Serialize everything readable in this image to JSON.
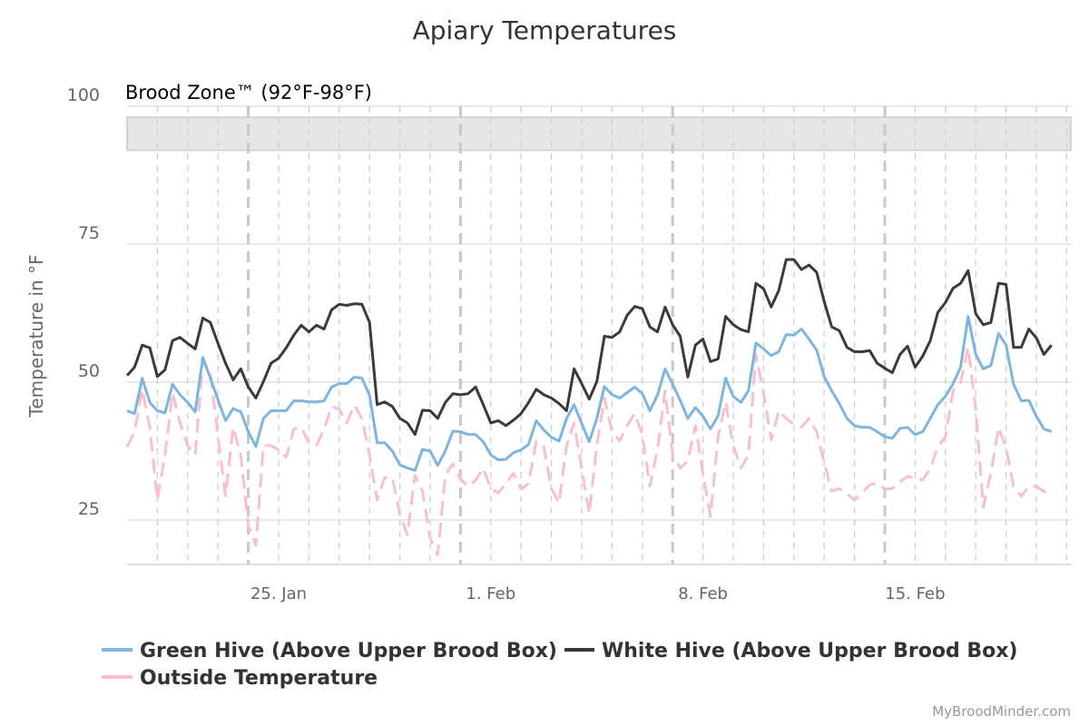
{
  "chart_data": {
    "type": "line",
    "title": "Apiary Temperatures",
    "ylabel": "Temperature in °F",
    "xlabel": "",
    "x_start": "Jan 20 00:00",
    "interval_hours": 6,
    "x_ticks": [
      {
        "label": "25. Jan",
        "day": 5
      },
      {
        "label": "1. Feb",
        "day": 12
      },
      {
        "label": "8. Feb",
        "day": 19
      },
      {
        "label": "15. Feb",
        "day": 26
      }
    ],
    "x_range_days": [
      0,
      31.1
    ],
    "y_ticks": [
      "25",
      "50",
      "75",
      "100"
    ],
    "ylim": [
      17,
      101.6
    ],
    "grid": {
      "horizontal": true,
      "vertical_daily_dashed": true
    },
    "plot_band": {
      "label": "Brood Zone™ (92°F-98°F)",
      "from": 92,
      "to": 98,
      "color": "#e6e6e6"
    },
    "legend_position": "bottom-left",
    "series": [
      {
        "name": "Green Hive (Above Upper Brood Box)",
        "color": "#7cb5e0",
        "dash": false,
        "values": [
          44.8,
          44.3,
          50.7,
          46.3,
          44.8,
          44.4,
          49.6,
          47.7,
          46.3,
          44.6,
          54.5,
          50.7,
          46.8,
          43.0,
          45.2,
          44.6,
          41.0,
          38.3,
          43.4,
          44.8,
          44.8,
          44.8,
          46.6,
          46.6,
          46.4,
          46.4,
          46.6,
          49.1,
          49.7,
          49.7,
          50.9,
          50.7,
          47.6,
          39.0,
          39.0,
          37.5,
          35.0,
          34.4,
          34.0,
          37.8,
          37.5,
          34.9,
          37.5,
          41.1,
          41.0,
          40.5,
          40.5,
          39.2,
          36.8,
          35.9,
          36.0,
          37.2,
          37.7,
          38.7,
          43.0,
          41.3,
          40.0,
          39.3,
          43.4,
          45.9,
          42.5,
          39.2,
          43.4,
          49.2,
          47.7,
          47.1,
          48.1,
          49.1,
          47.9,
          44.8,
          47.6,
          52.4,
          49.6,
          46.7,
          43.4,
          45.4,
          43.8,
          41.5,
          43.9,
          50.7,
          47.4,
          46.3,
          48.4,
          57.1,
          56.0,
          54.8,
          55.5,
          58.6,
          58.5,
          59.6,
          57.8,
          55.8,
          51.0,
          48.4,
          46.1,
          43.4,
          42.1,
          41.8,
          41.8,
          41.0,
          40.1,
          39.8,
          41.6,
          41.8,
          40.5,
          41.0,
          43.4,
          45.9,
          47.4,
          49.7,
          52.7,
          61.9,
          55.0,
          52.4,
          53.0,
          58.8,
          56.7,
          49.6,
          46.6,
          46.7,
          43.8,
          41.5,
          41.0
        ]
      },
      {
        "name": "White Hive (Above Upper Brood Box)",
        "color": "#3a3a3a",
        "dash": false,
        "values": [
          51.2,
          52.7,
          56.7,
          56.2,
          51.0,
          52.2,
          57.5,
          58.1,
          57.0,
          56.0,
          61.6,
          60.8,
          57.0,
          53.4,
          50.4,
          52.4,
          49.1,
          47.1,
          50.1,
          53.4,
          54.3,
          56.2,
          58.5,
          60.3,
          59.1,
          60.3,
          59.6,
          63.1,
          64.1,
          63.9,
          64.2,
          64.1,
          60.8,
          45.9,
          46.4,
          45.6,
          43.4,
          42.6,
          40.5,
          44.9,
          44.8,
          43.4,
          46.3,
          47.9,
          47.7,
          47.9,
          49.1,
          45.9,
          42.6,
          43.0,
          42.1,
          43.1,
          44.3,
          46.3,
          48.7,
          47.7,
          47.1,
          46.1,
          44.8,
          52.4,
          49.7,
          46.9,
          50.1,
          58.3,
          58.1,
          59.1,
          62.1,
          63.7,
          63.3,
          60.0,
          59.1,
          63.6,
          60.4,
          58.3,
          50.9,
          56.7,
          57.8,
          53.7,
          54.2,
          61.9,
          60.4,
          59.5,
          59.1,
          67.9,
          66.9,
          63.6,
          66.6,
          72.2,
          72.2,
          70.4,
          71.2,
          69.9,
          64.6,
          60.0,
          59.3,
          56.3,
          55.5,
          55.5,
          55.7,
          53.4,
          52.5,
          51.7,
          55.0,
          56.5,
          52.7,
          54.7,
          57.5,
          62.6,
          64.4,
          67.0,
          67.9,
          70.2,
          62.4,
          60.4,
          60.8,
          67.9,
          67.7,
          56.3,
          56.3,
          59.6,
          58.0,
          55.0,
          56.7
        ]
      },
      {
        "name": "Outside Temperature",
        "color": "#f7c0cc",
        "dash": true,
        "values": [
          38.2,
          41.0,
          48.7,
          41.8,
          28.6,
          36.8,
          48.1,
          42.6,
          38.5,
          36.8,
          53.8,
          51.7,
          40.1,
          29.4,
          41.8,
          36.8,
          24.0,
          20.4,
          38.5,
          38.5,
          37.7,
          36.4,
          41.5,
          41.8,
          39.0,
          38.5,
          41.5,
          45.6,
          45.1,
          42.6,
          45.8,
          43.4,
          36.8,
          28.6,
          32.7,
          32.7,
          26.1,
          22.3,
          33.1,
          30.2,
          21.7,
          18.7,
          33.1,
          35.2,
          32.4,
          31.1,
          32.2,
          34.4,
          30.7,
          29.9,
          31.6,
          33.5,
          30.6,
          31.6,
          39.3,
          38.2,
          30.7,
          28.1,
          38.5,
          42.6,
          34.4,
          26.1,
          38.5,
          47.1,
          41.0,
          39.3,
          42.1,
          44.3,
          40.5,
          31.1,
          37.7,
          48.4,
          36.8,
          34.4,
          35.7,
          42.1,
          33.5,
          25.6,
          40.1,
          46.4,
          38.5,
          34.4,
          36.8,
          55.0,
          48.1,
          39.5,
          44.8,
          43.4,
          42.3,
          41.8,
          43.4,
          41.0,
          35.5,
          30.2,
          30.7,
          29.8,
          28.6,
          29.9,
          31.4,
          31.7,
          30.6,
          30.7,
          31.9,
          32.9,
          32.6,
          32.2,
          34.4,
          38.2,
          40.1,
          48.4,
          49.9,
          56.3,
          45.1,
          27.3,
          33.5,
          41.8,
          38.2,
          31.1,
          29.3,
          31.1,
          31.1,
          30.2,
          29.4
        ]
      }
    ]
  },
  "credit": "MyBroodMinder.com"
}
